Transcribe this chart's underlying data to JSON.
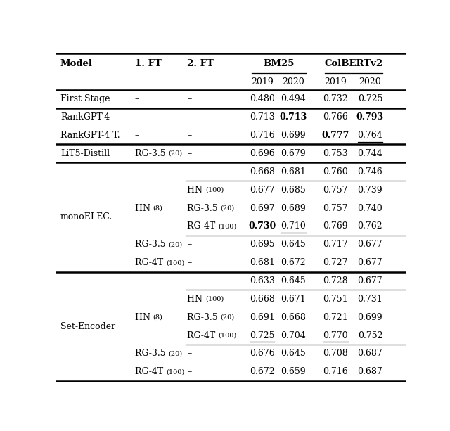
{
  "figsize": [
    6.4,
    6.13
  ],
  "dpi": 100,
  "rows": [
    {
      "model": "First Stage",
      "ft1": "",
      "ft2": "",
      "bm25_2019": "0.480",
      "bm25_2020": "0.494",
      "col_2019": "0.732",
      "col_2020": "0.725",
      "bold": [],
      "underline": [],
      "ft1_parts": [
        [
          "–",
          9,
          false
        ]
      ],
      "ft2_parts": [
        [
          "–",
          9,
          false
        ]
      ],
      "thick_above": false,
      "thin_above": true,
      "sub_thin_above": false
    },
    {
      "model": "RankGPT-4",
      "ft1": "",
      "ft2": "",
      "bm25_2019": "0.713",
      "bm25_2020": "0.713",
      "col_2019": "0.766",
      "col_2020": "0.793",
      "bold": [
        "bm25_2020",
        "col_2020"
      ],
      "underline": [],
      "ft1_parts": [
        [
          "–",
          9,
          false
        ]
      ],
      "ft2_parts": [
        [
          "–",
          9,
          false
        ]
      ],
      "thick_above": true,
      "thin_above": false,
      "sub_thin_above": false
    },
    {
      "model": "RankGPT-4 T.",
      "ft1": "",
      "ft2": "",
      "bm25_2019": "0.716",
      "bm25_2020": "0.699",
      "col_2019": "0.777",
      "col_2020": "0.764",
      "bold": [
        "col_2019"
      ],
      "underline": [
        "col_2020"
      ],
      "ft1_parts": [
        [
          "–",
          9,
          false
        ]
      ],
      "ft2_parts": [
        [
          "–",
          9,
          false
        ]
      ],
      "thick_above": false,
      "thin_above": false,
      "sub_thin_above": false
    },
    {
      "model": "LiT5-Distill",
      "ft1": "",
      "ft2": "",
      "bm25_2019": "0.696",
      "bm25_2020": "0.679",
      "col_2019": "0.753",
      "col_2020": "0.744",
      "bold": [],
      "underline": [],
      "ft1_parts": [
        [
          "RG-3.5 ",
          9,
          false
        ],
        [
          "(20)",
          7,
          false
        ]
      ],
      "ft2_parts": [
        [
          "–",
          9,
          false
        ]
      ],
      "thick_above": true,
      "thin_above": false,
      "sub_thin_above": false
    },
    {
      "model": "monoELEC.",
      "ft1": "",
      "ft2": "",
      "bm25_2019": "0.668",
      "bm25_2020": "0.681",
      "col_2019": "0.760",
      "col_2020": "0.746",
      "bold": [],
      "underline": [],
      "ft1_parts": [],
      "ft2_parts": [
        [
          "–",
          9,
          false
        ]
      ],
      "thick_above": true,
      "thin_above": false,
      "sub_thin_above": false,
      "model_span": 6,
      "ft1_span": 0
    },
    {
      "model": "",
      "ft1": "",
      "ft2": "",
      "bm25_2019": "0.677",
      "bm25_2020": "0.685",
      "col_2019": "0.757",
      "col_2020": "0.739",
      "bold": [],
      "underline": [],
      "ft1_parts": [],
      "ft2_parts": [
        [
          "HN ",
          9,
          false
        ],
        [
          "(100)",
          7,
          false
        ]
      ],
      "thick_above": false,
      "thin_above": false,
      "sub_thin_above": true,
      "ft1_span": 3,
      "ft1_span_parts": [
        [
          "HN ",
          9,
          false
        ],
        [
          "(8)",
          7,
          false
        ]
      ]
    },
    {
      "model": "",
      "ft1": "",
      "ft2": "",
      "bm25_2019": "0.697",
      "bm25_2020": "0.689",
      "col_2019": "0.757",
      "col_2020": "0.740",
      "bold": [],
      "underline": [],
      "ft1_parts": [],
      "ft2_parts": [
        [
          "RG-3.5 ",
          9,
          false
        ],
        [
          "(20)",
          7,
          false
        ]
      ],
      "thick_above": false,
      "thin_above": false,
      "sub_thin_above": false
    },
    {
      "model": "",
      "ft1": "",
      "ft2": "",
      "bm25_2019": "0.730",
      "bm25_2020": "0.710",
      "col_2019": "0.769",
      "col_2020": "0.762",
      "bold": [
        "bm25_2019"
      ],
      "underline": [
        "bm25_2020"
      ],
      "ft1_parts": [],
      "ft2_parts": [
        [
          "RG-4T ",
          9,
          false
        ],
        [
          "(100)",
          7,
          false
        ]
      ],
      "thick_above": false,
      "thin_above": false,
      "sub_thin_above": false
    },
    {
      "model": "",
      "ft1": "",
      "ft2": "",
      "bm25_2019": "0.695",
      "bm25_2020": "0.645",
      "col_2019": "0.717",
      "col_2020": "0.677",
      "bold": [],
      "underline": [],
      "ft1_parts": [
        [
          "RG-3.5 ",
          9,
          false
        ],
        [
          "(20)",
          7,
          false
        ]
      ],
      "ft2_parts": [
        [
          "–",
          9,
          false
        ]
      ],
      "thick_above": false,
      "thin_above": false,
      "sub_thin_above": true
    },
    {
      "model": "",
      "ft1": "",
      "ft2": "",
      "bm25_2019": "0.681",
      "bm25_2020": "0.672",
      "col_2019": "0.727",
      "col_2020": "0.677",
      "bold": [],
      "underline": [],
      "ft1_parts": [
        [
          "RG-4T ",
          9,
          false
        ],
        [
          "(100)",
          7,
          false
        ]
      ],
      "ft2_parts": [
        [
          "–",
          9,
          false
        ]
      ],
      "thick_above": false,
      "thin_above": false,
      "sub_thin_above": false
    },
    {
      "model": "Set-Encoder",
      "ft1": "",
      "ft2": "",
      "bm25_2019": "0.633",
      "bm25_2020": "0.645",
      "col_2019": "0.728",
      "col_2020": "0.677",
      "bold": [],
      "underline": [],
      "ft1_parts": [],
      "ft2_parts": [
        [
          "–",
          9,
          false
        ]
      ],
      "thick_above": true,
      "thin_above": false,
      "sub_thin_above": false,
      "model_span": 6,
      "ft1_span": 0
    },
    {
      "model": "",
      "ft1": "",
      "ft2": "",
      "bm25_2019": "0.668",
      "bm25_2020": "0.671",
      "col_2019": "0.751",
      "col_2020": "0.731",
      "bold": [],
      "underline": [],
      "ft1_parts": [],
      "ft2_parts": [
        [
          "HN ",
          9,
          false
        ],
        [
          "(100)",
          7,
          false
        ]
      ],
      "thick_above": false,
      "thin_above": false,
      "sub_thin_above": true,
      "ft1_span": 3,
      "ft1_span_parts": [
        [
          "HN ",
          9,
          false
        ],
        [
          "(8)",
          7,
          false
        ]
      ]
    },
    {
      "model": "",
      "ft1": "",
      "ft2": "",
      "bm25_2019": "0.691",
      "bm25_2020": "0.668",
      "col_2019": "0.721",
      "col_2020": "0.699",
      "bold": [],
      "underline": [],
      "ft1_parts": [],
      "ft2_parts": [
        [
          "RG-3.5 ",
          9,
          false
        ],
        [
          "(20)",
          7,
          false
        ]
      ],
      "thick_above": false,
      "thin_above": false,
      "sub_thin_above": false
    },
    {
      "model": "",
      "ft1": "",
      "ft2": "",
      "bm25_2019": "0.725",
      "bm25_2020": "0.704",
      "col_2019": "0.770",
      "col_2020": "0.752",
      "bold": [],
      "underline": [
        "bm25_2019",
        "col_2019"
      ],
      "ft1_parts": [],
      "ft2_parts": [
        [
          "RG-4T ",
          9,
          false
        ],
        [
          "(100)",
          7,
          false
        ]
      ],
      "thick_above": false,
      "thin_above": false,
      "sub_thin_above": false
    },
    {
      "model": "",
      "ft1": "",
      "ft2": "",
      "bm25_2019": "0.676",
      "bm25_2020": "0.645",
      "col_2019": "0.708",
      "col_2020": "0.687",
      "bold": [],
      "underline": [],
      "ft1_parts": [
        [
          "RG-3.5 ",
          9,
          false
        ],
        [
          "(20)",
          7,
          false
        ]
      ],
      "ft2_parts": [
        [
          "–",
          9,
          false
        ]
      ],
      "thick_above": false,
      "thin_above": false,
      "sub_thin_above": true
    },
    {
      "model": "",
      "ft1": "",
      "ft2": "",
      "bm25_2019": "0.672",
      "bm25_2020": "0.659",
      "col_2019": "0.716",
      "col_2020": "0.687",
      "bold": [],
      "underline": [],
      "ft1_parts": [
        [
          "RG-4T ",
          9,
          false
        ],
        [
          "(100)",
          7,
          false
        ]
      ],
      "ft2_parts": [
        [
          "–",
          9,
          false
        ]
      ],
      "thick_above": false,
      "thin_above": false,
      "sub_thin_above": false
    }
  ],
  "col_x": {
    "model": 0.012,
    "ft1": 0.225,
    "ft2": 0.375,
    "bm25_2019": 0.565,
    "bm25_2020": 0.655,
    "col_2019": 0.775,
    "col_2020": 0.875
  },
  "header_fs": 9.5,
  "body_fs": 9.0,
  "small_fs": 7.0
}
